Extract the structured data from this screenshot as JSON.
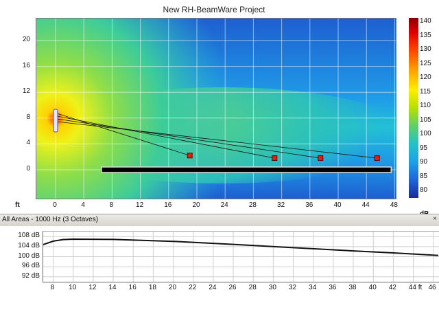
{
  "window": {
    "title": "New RH-BeamWare Project"
  },
  "coverage_plot": {
    "y_ticks": [
      "20",
      "16",
      "12",
      "8",
      "4",
      "0"
    ],
    "x_ticks": [
      "0",
      "4",
      "8",
      "12",
      "16",
      "20",
      "24",
      "28",
      "32",
      "36",
      "40",
      "44",
      "48"
    ],
    "x_unit": "ft",
    "colorbar_ticks": [
      "140",
      "135",
      "130",
      "125",
      "120",
      "115",
      "110",
      "105",
      "100",
      "95",
      "90",
      "85",
      "80"
    ],
    "colorbar_unit": "dB",
    "speaker_icon": "line-array-speaker-icon",
    "aim_point_icon": "aim-point-marker-icon",
    "aim_points_x_ft": [
      19,
      31,
      37.5,
      45.5
    ],
    "aim_points_y_ft": [
      2.2,
      1.8,
      1.8,
      1.8
    ],
    "audience_area_x_ft": [
      6.5,
      47.5
    ],
    "audience_area_y_ft": 0
  },
  "area_selector": {
    "label": "All Areas - 1000 Hz (3 Octaves)",
    "close_icon": "close-icon",
    "close_glyph": "×"
  },
  "frequency_plot": {
    "y_ticks": [
      "108 dB",
      "104 dB",
      "100 dB",
      "96 dB",
      "92 dB"
    ],
    "x_ticks": [
      "8",
      "10",
      "12",
      "14",
      "16",
      "18",
      "20",
      "22",
      "24",
      "26",
      "28",
      "30",
      "32",
      "34",
      "36",
      "38",
      "40",
      "42",
      "44 ft",
      "46"
    ]
  },
  "chart_data": {
    "type": "line",
    "title": "",
    "xlabel": "",
    "ylabel": "",
    "x": [
      7,
      8,
      9,
      10,
      14,
      20,
      26,
      32,
      38,
      42,
      46.5
    ],
    "series": [
      {
        "values": [
          104.8,
          106.2,
          106.8,
          107.0,
          106.9,
          106.1,
          104.9,
          103.6,
          102.3,
          101.5,
          100.5
        ]
      }
    ],
    "xlim": [
      7,
      46.5
    ],
    "ylim": [
      90,
      110
    ],
    "grid": true
  },
  "colors": {
    "plot_background": "#2a78d8",
    "grid": "#ffffff",
    "aim_point": "#e02010",
    "audience_area": "#000000"
  }
}
